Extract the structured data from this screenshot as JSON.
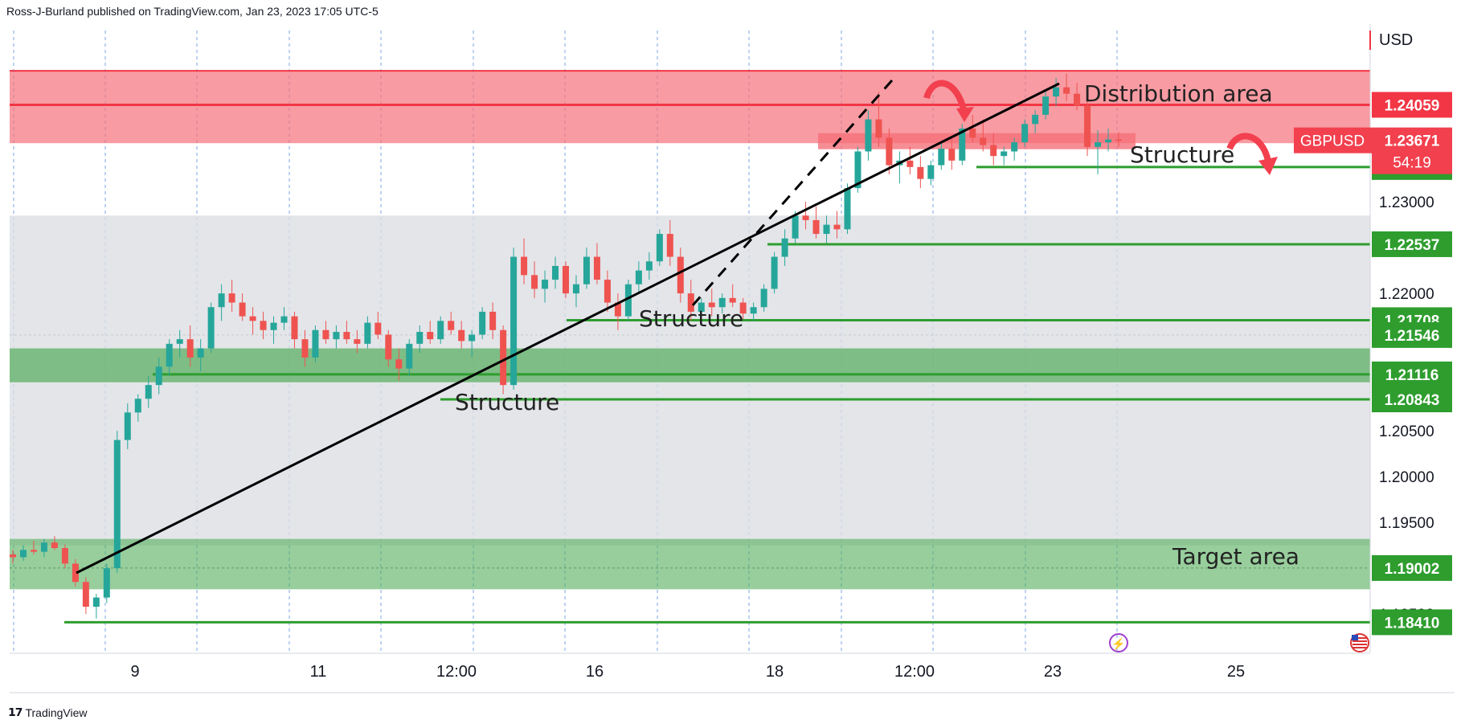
{
  "publisher": "Ross-J-Burland published on TradingView.com, Jan 23, 2023 17:05 UTC-5",
  "footer": {
    "brand": "TradingView",
    "logo_icon": "tradingview-logo-icon"
  },
  "colors": {
    "up": "#26a69a",
    "down": "#ef5350",
    "support": "#2e9d2e",
    "resistance": "#f23645",
    "red_zone": "#f5717b",
    "grey_zone": "#dcdee3",
    "green_zone": "#52ad5a",
    "trend": "#000000"
  },
  "chart_data": {
    "type": "candlestick",
    "symbol": "GBPUSD",
    "currency": "USD",
    "countdown": "54:19",
    "last_price": 1.23671,
    "ylim": [
      1.1808,
      1.2487
    ],
    "x_ticks": [
      "9",
      "11",
      "12:00",
      "16",
      "18",
      "12:00",
      "23",
      "25"
    ],
    "y_ticks": [
      1.185,
      1.195,
      1.2,
      1.205,
      1.22,
      1.23
    ],
    "price_levels": [
      {
        "label": "1.24059",
        "value": 1.24059,
        "kind": "resistance"
      },
      {
        "label": "1.23380",
        "value": 1.2338,
        "kind": "support"
      },
      {
        "label": "1.22537",
        "value": 1.22537,
        "kind": "support"
      },
      {
        "label": "1.21708",
        "value": 1.21708,
        "kind": "support"
      },
      {
        "label": "1.21546",
        "value": 1.21546,
        "kind": "support"
      },
      {
        "label": "1.21116",
        "value": 1.21116,
        "kind": "support"
      },
      {
        "label": "1.20843",
        "value": 1.20843,
        "kind": "support"
      },
      {
        "label": "1.19002",
        "value": 1.19002,
        "kind": "support"
      },
      {
        "label": "1.18410",
        "value": 1.1841,
        "kind": "support"
      }
    ],
    "zones": [
      {
        "name": "distribution",
        "from": 1.2364,
        "to": 1.2443
      },
      {
        "name": "range",
        "from": 1.1925,
        "to": 1.2285
      },
      {
        "name": "demand",
        "from": 1.2103,
        "to": 1.214
      },
      {
        "name": "target",
        "from": 1.1877,
        "to": 1.1932
      }
    ],
    "annotations": [
      "Distribution area",
      "Structure",
      "Structure",
      "Structure",
      "Target area"
    ],
    "candles": [
      [
        1.1915,
        1.192,
        1.1905,
        1.1912
      ],
      [
        1.1912,
        1.1925,
        1.1908,
        1.192
      ],
      [
        1.192,
        1.193,
        1.1915,
        1.1918
      ],
      [
        1.1918,
        1.1932,
        1.1912,
        1.1928
      ],
      [
        1.1928,
        1.1935,
        1.192,
        1.1922
      ],
      [
        1.1922,
        1.1926,
        1.19,
        1.1905
      ],
      [
        1.1905,
        1.191,
        1.188,
        1.1885
      ],
      [
        1.1885,
        1.189,
        1.185,
        1.1858
      ],
      [
        1.1858,
        1.1872,
        1.1845,
        1.1868
      ],
      [
        1.1868,
        1.1905,
        1.1862,
        1.19
      ],
      [
        1.19,
        1.205,
        1.1895,
        1.204
      ],
      [
        1.204,
        1.208,
        1.203,
        1.207
      ],
      [
        1.207,
        1.209,
        1.206,
        1.2085
      ],
      [
        1.2085,
        1.211,
        1.2075,
        1.21
      ],
      [
        1.21,
        1.213,
        1.209,
        1.212
      ],
      [
        1.212,
        1.215,
        1.211,
        1.2145
      ],
      [
        1.2145,
        1.216,
        1.213,
        1.215
      ],
      [
        1.215,
        1.2165,
        1.212,
        1.213
      ],
      [
        1.213,
        1.215,
        1.2115,
        1.214
      ],
      [
        1.214,
        1.219,
        1.2135,
        1.2185
      ],
      [
        1.2185,
        1.221,
        1.217,
        1.22
      ],
      [
        1.22,
        1.2215,
        1.218,
        1.219
      ],
      [
        1.219,
        1.22,
        1.217,
        1.2175
      ],
      [
        1.2175,
        1.2185,
        1.2155,
        1.217
      ],
      [
        1.217,
        1.218,
        1.215,
        1.216
      ],
      [
        1.216,
        1.2175,
        1.2145,
        1.2168
      ],
      [
        1.2168,
        1.2185,
        1.216,
        1.2175
      ],
      [
        1.2175,
        1.218,
        1.214,
        1.215
      ],
      [
        1.215,
        1.216,
        1.212,
        1.213
      ],
      [
        1.213,
        1.2165,
        1.2125,
        1.216
      ],
      [
        1.216,
        1.217,
        1.2145,
        1.215
      ],
      [
        1.215,
        1.2165,
        1.214,
        1.2158
      ],
      [
        1.2158,
        1.217,
        1.2145,
        1.215
      ],
      [
        1.215,
        1.216,
        1.2135,
        1.2145
      ],
      [
        1.2145,
        1.2175,
        1.214,
        1.2168
      ],
      [
        1.2168,
        1.218,
        1.215,
        1.2155
      ],
      [
        1.2155,
        1.216,
        1.212,
        1.2128
      ],
      [
        1.2128,
        1.214,
        1.2105,
        1.2118
      ],
      [
        1.2118,
        1.215,
        1.211,
        1.2145
      ],
      [
        1.2145,
        1.2165,
        1.2135,
        1.2158
      ],
      [
        1.2158,
        1.217,
        1.2145,
        1.215
      ],
      [
        1.215,
        1.2175,
        1.2145,
        1.217
      ],
      [
        1.217,
        1.218,
        1.2155,
        1.216
      ],
      [
        1.216,
        1.217,
        1.214,
        1.2148
      ],
      [
        1.2148,
        1.216,
        1.213,
        1.2155
      ],
      [
        1.2155,
        1.2185,
        1.215,
        1.218
      ],
      [
        1.218,
        1.219,
        1.215,
        1.216
      ],
      [
        1.216,
        1.2165,
        1.209,
        1.21
      ],
      [
        1.21,
        1.225,
        1.2095,
        1.224
      ],
      [
        1.224,
        1.226,
        1.221,
        1.222
      ],
      [
        1.222,
        1.2235,
        1.2195,
        1.2205
      ],
      [
        1.2205,
        1.2225,
        1.219,
        1.2215
      ],
      [
        1.2215,
        1.224,
        1.2205,
        1.223
      ],
      [
        1.223,
        1.2235,
        1.2195,
        1.22
      ],
      [
        1.22,
        1.222,
        1.2185,
        1.221
      ],
      [
        1.221,
        1.225,
        1.2205,
        1.224
      ],
      [
        1.224,
        1.2255,
        1.221,
        1.2215
      ],
      [
        1.2215,
        1.2225,
        1.218,
        1.219
      ],
      [
        1.219,
        1.22,
        1.216,
        1.2175
      ],
      [
        1.2175,
        1.2215,
        1.217,
        1.221
      ],
      [
        1.221,
        1.2235,
        1.22,
        1.2225
      ],
      [
        1.2225,
        1.2245,
        1.2215,
        1.2235
      ],
      [
        1.2235,
        1.227,
        1.223,
        1.2265
      ],
      [
        1.2265,
        1.228,
        1.223,
        1.224
      ],
      [
        1.224,
        1.225,
        1.219,
        1.22
      ],
      [
        1.22,
        1.2215,
        1.217,
        1.218
      ],
      [
        1.218,
        1.2195,
        1.217,
        1.219
      ],
      [
        1.219,
        1.2205,
        1.2175,
        1.2185
      ],
      [
        1.2185,
        1.22,
        1.2178,
        1.2195
      ],
      [
        1.2195,
        1.221,
        1.2185,
        1.219
      ],
      [
        1.219,
        1.2195,
        1.2172,
        1.2178
      ],
      [
        1.2178,
        1.219,
        1.217,
        1.2185
      ],
      [
        1.2185,
        1.221,
        1.218,
        1.2205
      ],
      [
        1.2205,
        1.2245,
        1.22,
        1.224
      ],
      [
        1.224,
        1.227,
        1.223,
        1.226
      ],
      [
        1.226,
        1.229,
        1.2255,
        1.2285
      ],
      [
        1.2285,
        1.23,
        1.227,
        1.228
      ],
      [
        1.228,
        1.2295,
        1.226,
        1.2265
      ],
      [
        1.2265,
        1.2285,
        1.2255,
        1.2275
      ],
      [
        1.2275,
        1.229,
        1.226,
        1.227
      ],
      [
        1.227,
        1.232,
        1.2265,
        1.2315
      ],
      [
        1.2315,
        1.236,
        1.231,
        1.2355
      ],
      [
        1.2355,
        1.24,
        1.2345,
        1.239
      ],
      [
        1.239,
        1.242,
        1.236,
        1.237
      ],
      [
        1.237,
        1.238,
        1.233,
        1.234
      ],
      [
        1.234,
        1.2355,
        1.232,
        1.2345
      ],
      [
        1.2345,
        1.236,
        1.233,
        1.2338
      ],
      [
        1.2338,
        1.235,
        1.2315,
        1.2325
      ],
      [
        1.2325,
        1.2345,
        1.2318,
        1.234
      ],
      [
        1.234,
        1.2365,
        1.2335,
        1.2358
      ],
      [
        1.2358,
        1.237,
        1.2335,
        1.2345
      ],
      [
        1.2345,
        1.2385,
        1.234,
        1.238
      ],
      [
        1.238,
        1.2395,
        1.2365,
        1.237
      ],
      [
        1.237,
        1.239,
        1.2355,
        1.2362
      ],
      [
        1.2362,
        1.2375,
        1.234,
        1.235
      ],
      [
        1.235,
        1.236,
        1.234,
        1.2355
      ],
      [
        1.2355,
        1.237,
        1.2345,
        1.2365
      ],
      [
        1.2365,
        1.239,
        1.236,
        1.2385
      ],
      [
        1.2385,
        1.24,
        1.2375,
        1.2395
      ],
      [
        1.2395,
        1.242,
        1.239,
        1.2415
      ],
      [
        1.2415,
        1.2435,
        1.2405,
        1.2425
      ],
      [
        1.2425,
        1.244,
        1.241,
        1.2418
      ],
      [
        1.2418,
        1.243,
        1.24,
        1.2405
      ],
      [
        1.2405,
        1.2412,
        1.235,
        1.236
      ],
      [
        1.236,
        1.2378,
        1.233,
        1.2365
      ],
      [
        1.2365,
        1.238,
        1.2355,
        1.2368
      ],
      [
        1.2368,
        1.2376,
        1.236,
        1.2367
      ]
    ]
  }
}
